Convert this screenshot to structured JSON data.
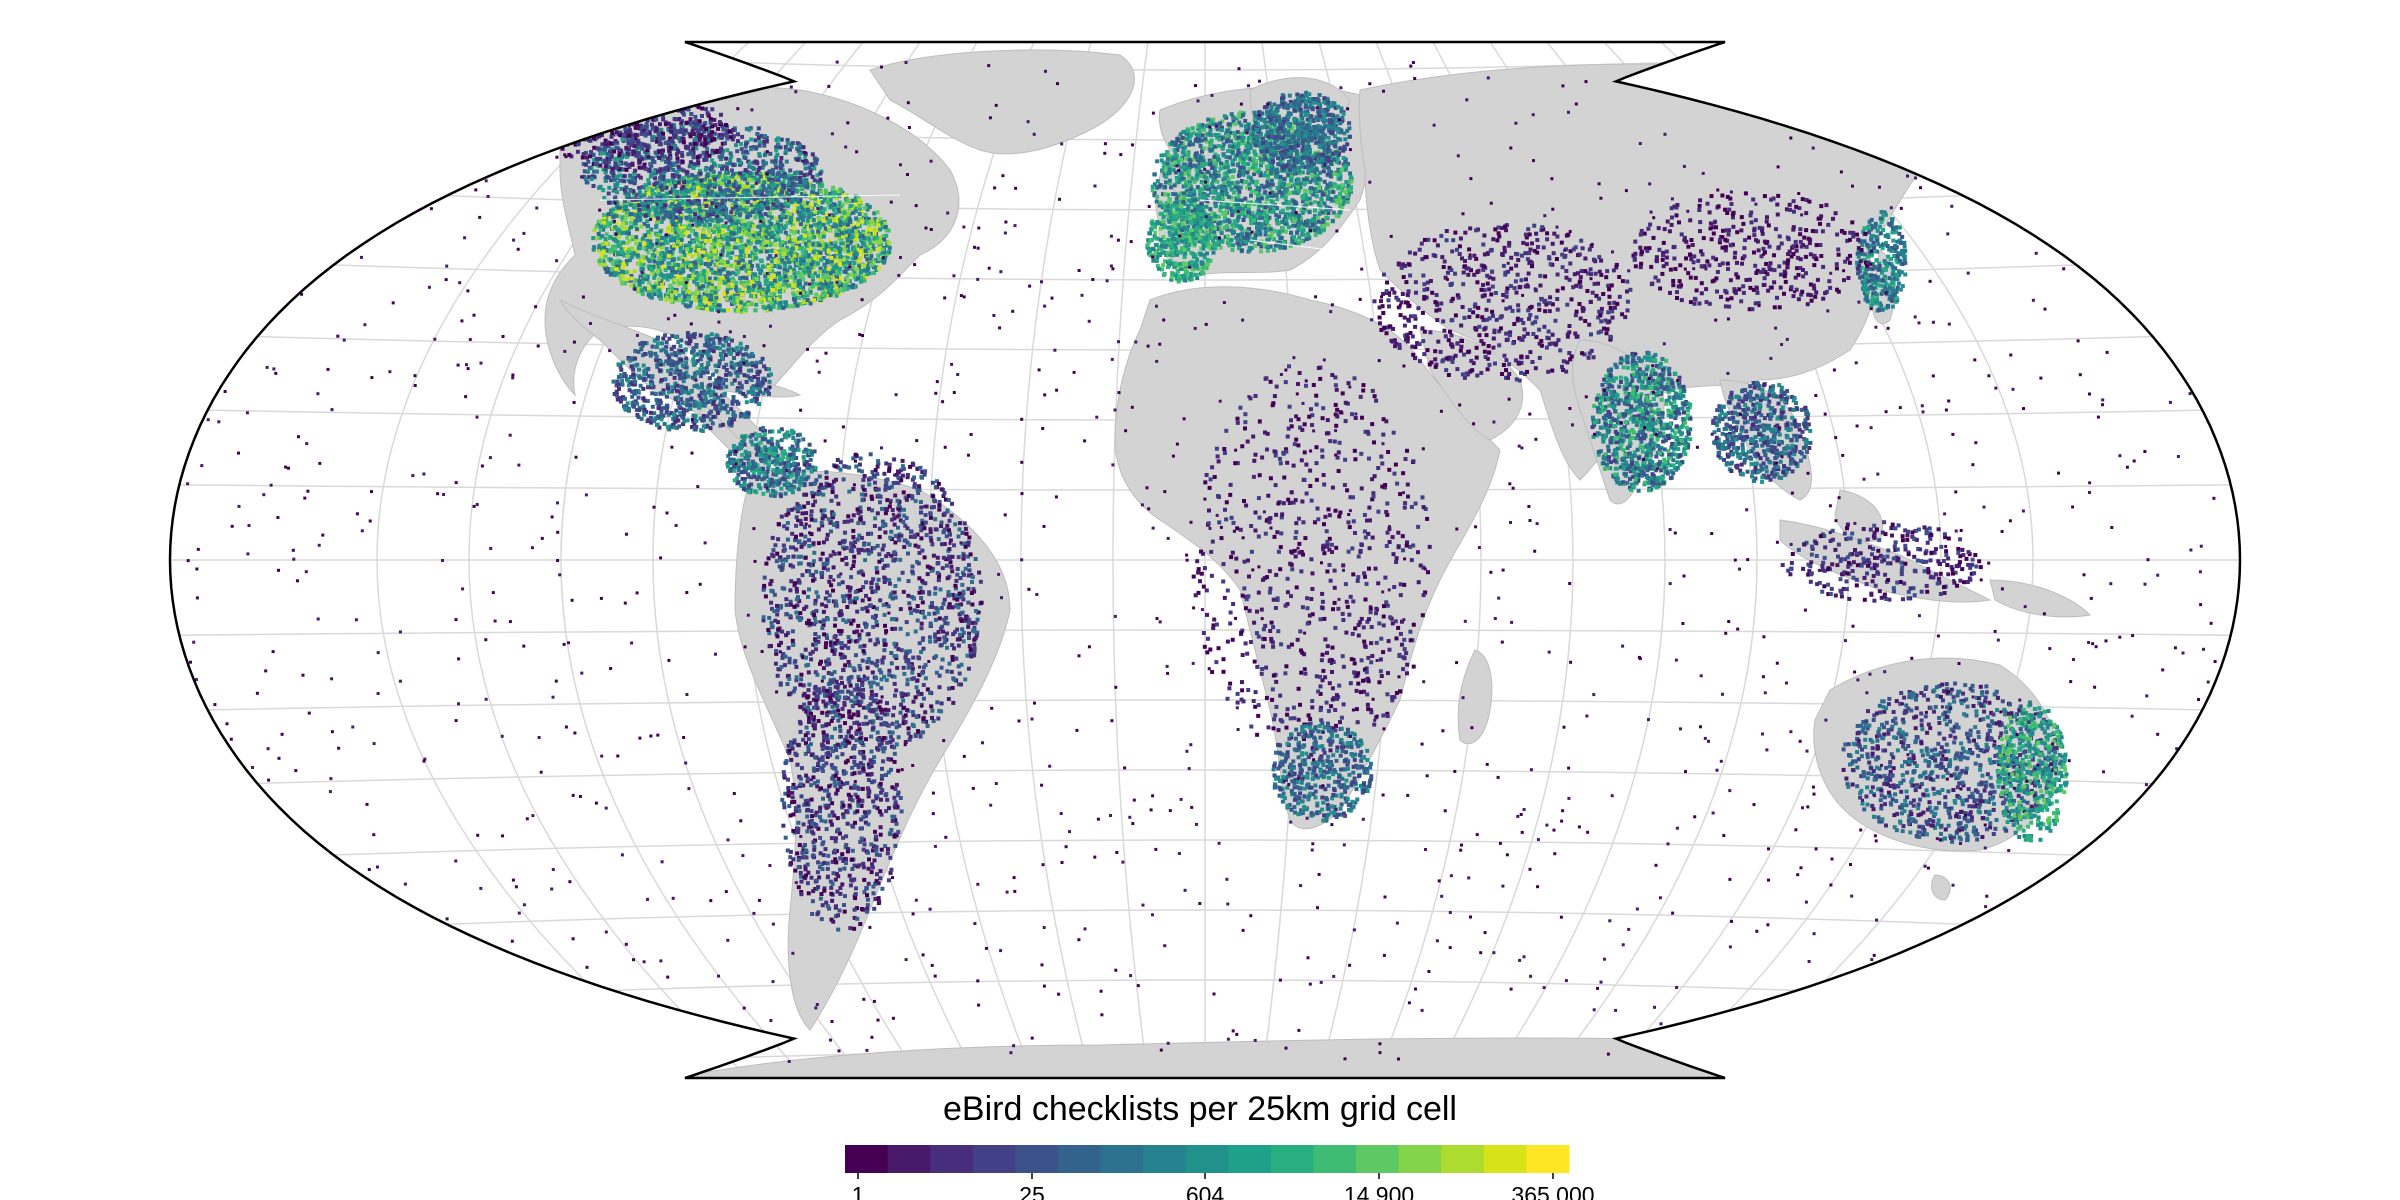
{
  "legend": {
    "title": "eBird checklists per 25km grid cell",
    "ticks": [
      "1",
      "25",
      "604",
      "14,900",
      "365,000"
    ],
    "palette": [
      "#440154",
      "#48186a",
      "#472d7b",
      "#424086",
      "#3b528b",
      "#33638d",
      "#2c728e",
      "#26828e",
      "#21918c",
      "#1fa088",
      "#28ae80",
      "#3fbc73",
      "#5ec962",
      "#84d44b",
      "#addc30",
      "#d8e219",
      "#fde725"
    ],
    "scale": "log"
  },
  "map": {
    "projection": "Winkel Tripel",
    "ocean_color": "#ffffff",
    "land_color": "#d3d3d3",
    "graticule_color": "#d9d9d9",
    "border_color": "#ffffff",
    "frame_color": "#000000"
  }
}
